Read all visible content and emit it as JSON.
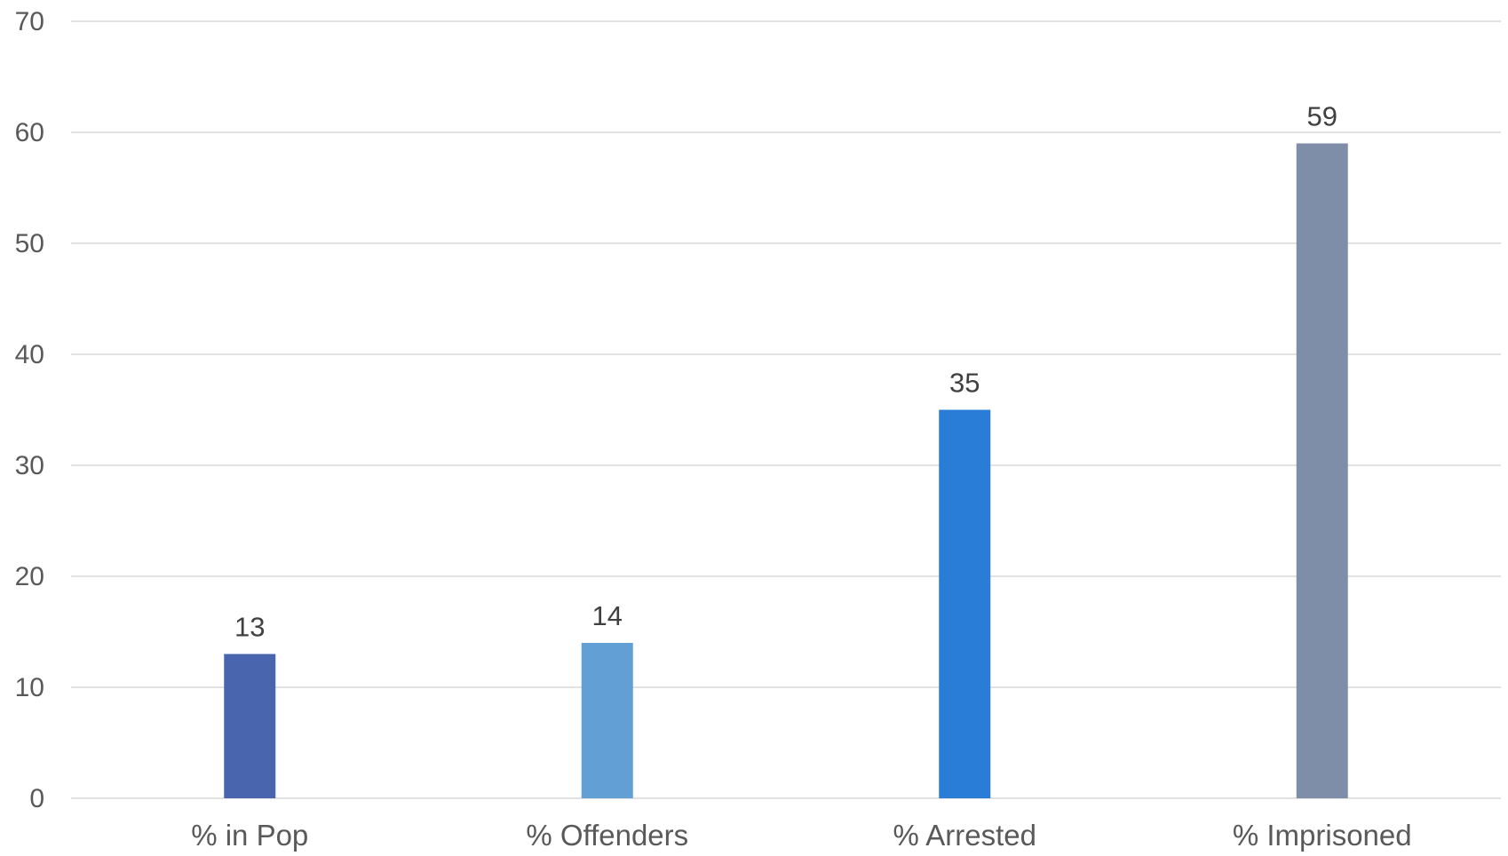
{
  "chart_data": {
    "type": "bar",
    "categories": [
      "% in Pop",
      "% Offenders",
      "% Arrested",
      "% Imprisoned"
    ],
    "values": [
      13,
      14,
      35,
      59
    ],
    "colors": [
      "#4865ad",
      "#629fd4",
      "#297dd6",
      "#7e8ea8"
    ],
    "yticks": [
      "0",
      "10",
      "20",
      "30",
      "40",
      "50",
      "60",
      "70"
    ],
    "ylim": [
      0,
      70
    ],
    "grid": true,
    "legend": "none",
    "data_labels": true
  }
}
